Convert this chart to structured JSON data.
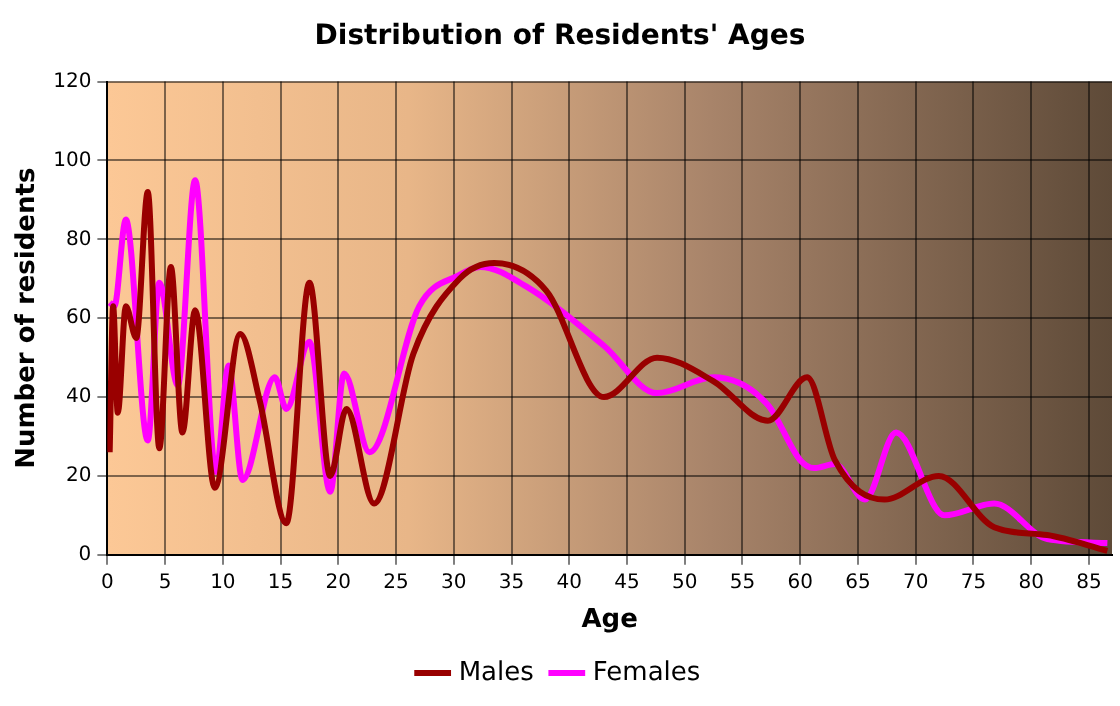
{
  "chart_data": {
    "type": "line",
    "title": "Distribution of Residents' Ages",
    "xlabel": "Age",
    "ylabel": "Number of residents",
    "xlim": [
      0,
      87
    ],
    "xticks": [
      0,
      5,
      10,
      15,
      20,
      25,
      30,
      35,
      40,
      45,
      50,
      55,
      60,
      65,
      70,
      75,
      80,
      85
    ],
    "ylim": [
      0,
      120
    ],
    "yticks": [
      0,
      20,
      40,
      60,
      80,
      100,
      120
    ],
    "grid": true,
    "legend": "bottom",
    "marker": "none",
    "line_style": "solid",
    "series": [
      {
        "name": "Males",
        "color": "#990000",
        "x": [
          0.2,
          0.5,
          0.9,
          1.6,
          2.5,
          3.5,
          4.5,
          5.5,
          6.5,
          7.6,
          9.3,
          11.5,
          13.2,
          15.5,
          17.5,
          19.3,
          20.7,
          23.1,
          26.5,
          30.5,
          33.5,
          38,
          43,
          47.6,
          52.5,
          57.2,
          60.6,
          63,
          67.3,
          72,
          76.8,
          81.4,
          86.6
        ],
        "values": [
          26,
          63,
          36,
          63,
          55,
          92,
          27,
          73,
          31,
          62,
          17,
          56,
          39,
          8,
          69,
          20,
          37,
          13,
          51,
          70,
          74,
          67,
          40,
          50,
          44,
          34,
          45,
          24,
          14,
          20,
          7,
          5,
          1
        ]
      },
      {
        "name": "Females",
        "color": "#ff00ff",
        "x": [
          0.2,
          0.6,
          1.6,
          3.5,
          4.5,
          6.1,
          7.6,
          9.4,
          10.5,
          11.7,
          14.5,
          15.5,
          17.5,
          19.3,
          20.5,
          22.7,
          27,
          30.5,
          32.3,
          36.3,
          43,
          47.6,
          52.5,
          57.2,
          60,
          61.2,
          63,
          65.6,
          68.3,
          72.5,
          76.8,
          81.4,
          86.6
        ],
        "values": [
          64,
          63,
          85,
          29,
          69,
          43,
          95,
          21,
          48,
          19,
          45,
          37,
          54,
          16,
          46,
          26,
          63,
          71,
          73,
          68,
          53,
          41,
          45,
          38,
          24,
          22,
          23,
          14,
          31,
          10,
          13,
          4,
          3
        ]
      }
    ]
  }
}
